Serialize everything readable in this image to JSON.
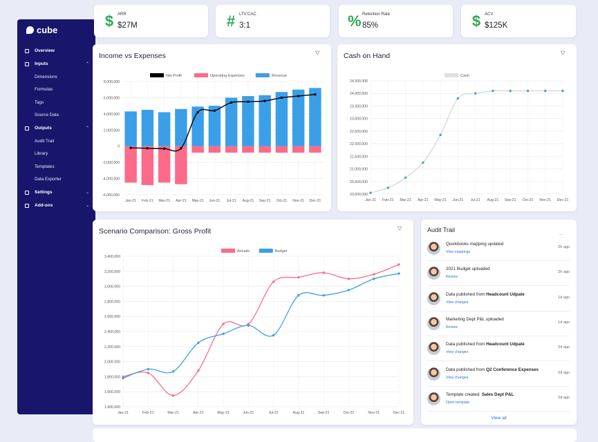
{
  "brand": {
    "name": "cube"
  },
  "sidebar": {
    "sections": [
      {
        "label": "Overview",
        "icon": "grid-icon"
      },
      {
        "label": "Inputs",
        "icon": "inbox-icon",
        "children": [
          "Dimensions",
          "Formulas",
          "Tags",
          "Source Data"
        ]
      },
      {
        "label": "Outputs",
        "icon": "export-icon",
        "children": [
          "Audit Trail",
          "Library",
          "Templates",
          "Data Exporter"
        ]
      },
      {
        "label": "Settings",
        "icon": "gear-icon"
      },
      {
        "label": "Add-ons",
        "icon": "addon-icon"
      }
    ]
  },
  "kpis": [
    {
      "symbol": "$",
      "label": "ARR",
      "value": "$27M"
    },
    {
      "symbol": "#",
      "label": "LTV:CAC",
      "value": "3:1"
    },
    {
      "symbol": "%",
      "label": "Retention Rate",
      "value": "85%"
    },
    {
      "symbol": "$",
      "label": "ACV",
      "value": "$125K"
    }
  ],
  "colors": {
    "sidebar": "#17166b",
    "positive": "#2eaa52",
    "pink": "#fd6b8a",
    "blue": "#3b9fe8",
    "link": "#2f6fd6"
  },
  "chart_data": [
    {
      "type": "bar",
      "title": "Income vs Expenses",
      "categories": [
        "Jan-21",
        "Feb-21",
        "Mar-21",
        "Apr-21",
        "May-21",
        "Jun-21",
        "Jul-21",
        "Aug-21",
        "Sep-21",
        "Oct-21",
        "Nov-21",
        "Dec-21"
      ],
      "series": [
        {
          "name": "Net Profit",
          "kind": "line",
          "color": "#000000",
          "values": [
            -200000,
            -250000,
            -300000,
            -250000,
            4200000,
            4400000,
            5400000,
            5500000,
            5600000,
            6000000,
            6200000,
            6400000
          ]
        },
        {
          "name": "Operating Expenses",
          "kind": "bar",
          "color": "#fd6b8a",
          "values": [
            -4500000,
            -4800000,
            -4500000,
            -4700000,
            -800000,
            -800000,
            -800000,
            -800000,
            -800000,
            -800000,
            -800000,
            -800000
          ]
        },
        {
          "name": "Revenue",
          "kind": "bar",
          "color": "#3b9fe8",
          "values": [
            4300000,
            4500000,
            4200000,
            4600000,
            4900000,
            5000000,
            6000000,
            6200000,
            6300000,
            6700000,
            7000000,
            7200000
          ]
        }
      ],
      "yticks": [
        "8,000,000",
        "6,000,000",
        "4,000,000",
        "2,000,000",
        "0",
        "-2,000,000",
        "-4,000,000",
        "-6,000,000"
      ],
      "ylim": [
        -6000000,
        8000000
      ],
      "legend": "top",
      "grid": true
    },
    {
      "type": "line",
      "title": "Cash on Hand",
      "categories": [
        "Jan-21",
        "Feb-21",
        "Mar-21",
        "Apr-21",
        "May-21",
        "Jun-21",
        "Jul-21",
        "Aug-21",
        "Sep-21",
        "Oct-21",
        "Nov-21",
        "Dec-21"
      ],
      "series": [
        {
          "name": "Cash",
          "color": "#3b9fe8",
          "values": [
            20050000,
            20250000,
            20650000,
            21250000,
            22350000,
            23800000,
            24000000,
            24100000,
            24100000,
            24100000,
            24100000,
            24100000
          ]
        }
      ],
      "yticks": [
        "24,500,000",
        "24,000,000",
        "23,500,000",
        "23,000,000",
        "22,500,000",
        "22,000,000",
        "21,500,000",
        "21,000,000",
        "20,500,000",
        "20,000,000"
      ],
      "ylim": [
        20000000,
        24500000
      ],
      "legend": "top",
      "grid": true
    },
    {
      "type": "line",
      "title": "Scenario Comparison: Gross Profit",
      "categories": [
        "Jan-21",
        "Feb-21",
        "Mar-21",
        "Apr-21",
        "May-21",
        "Jun-21",
        "Jul-21",
        "Aug-21",
        "Sep-21",
        "Oct-21",
        "Nov-21",
        "Dec-21"
      ],
      "series": [
        {
          "name": "Actuals",
          "color": "#fd6b8a",
          "values": [
            1800000,
            1850000,
            1550000,
            1880000,
            2500000,
            2500000,
            3060000,
            3120000,
            3180000,
            3100000,
            3160000,
            3290000
          ]
        },
        {
          "name": "Budget",
          "color": "#3b9fe8",
          "values": [
            1780000,
            1900000,
            1870000,
            2250000,
            2370000,
            2480000,
            2350000,
            2880000,
            2880000,
            2950000,
            3100000,
            3170000
          ]
        }
      ],
      "yticks": [
        "3,400,000",
        "3,200,000",
        "3,000,000",
        "2,800,000",
        "2,600,000",
        "2,400,000",
        "2,200,000",
        "2,000,000",
        "1,800,000",
        "1,600,000",
        "1,400,000"
      ],
      "ylim": [
        1400000,
        3400000
      ],
      "legend": "top",
      "grid": true
    }
  ],
  "audit": {
    "title": "Audit Trail",
    "more": "...",
    "items": [
      {
        "pre": "Quickbooks mapping updated",
        "bold": "",
        "link": "View mappings",
        "time": "2h ago"
      },
      {
        "pre": "2021 Budget uploaded",
        "bold": "",
        "link": "Review",
        "time": "2h ago"
      },
      {
        "pre": "Data published from ",
        "bold": "Headcount Udpate",
        "link": "View changes",
        "time": "1d ago"
      },
      {
        "pre": "Marketing Dept P&L uploaded",
        "bold": "",
        "link": "Review",
        "time": "1d ago"
      },
      {
        "pre": "Data published from ",
        "bold": "Headcount Udpate",
        "link": "View changes",
        "time": "2d ago"
      },
      {
        "pre": "Data published from ",
        "bold": "Q2 Conference Expenses",
        "link": "View changes",
        "time": "2d ago"
      },
      {
        "pre": "Template created: ",
        "bold": "Sales Dept P&L",
        "link": "Open template",
        "time": "2d ago"
      }
    ],
    "view_all": "View all"
  }
}
